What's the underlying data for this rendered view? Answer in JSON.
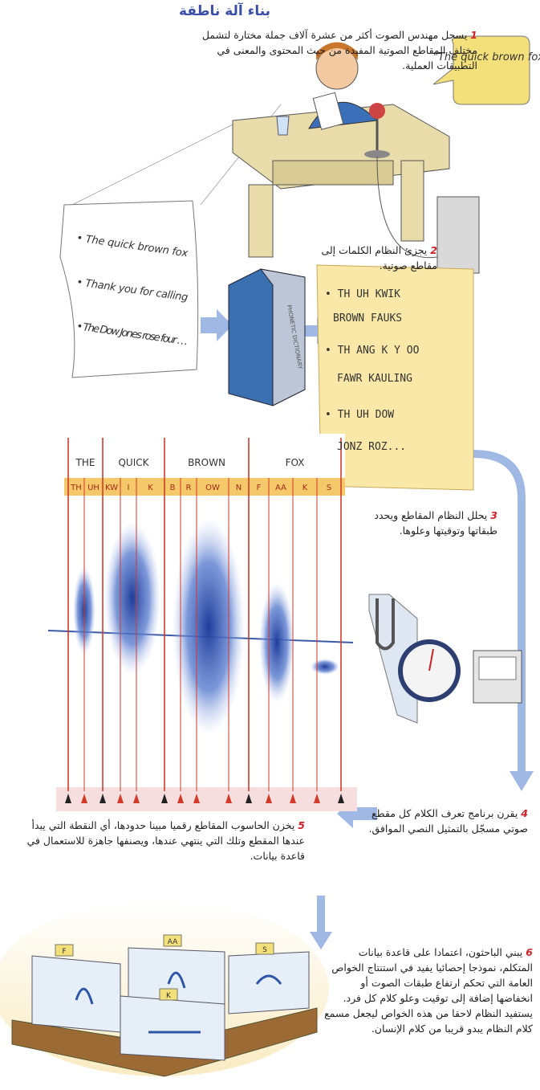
{
  "title": "بناء آلة ناطقة",
  "speech_bubble": "\"The quick brown fox\"",
  "script_lines": [
    "• The quick brown fox",
    "• Thank you for calling",
    "• The Dow Jones rose four . . ."
  ],
  "book_label": "PHONETIC DICTIONARY",
  "phonetic_lines": [
    "• TH UH KWIK",
    "BROWN FAUKS",
    "• TH ANG K Y OO",
    "FAWR KAULING",
    "• TH UH DOW",
    "JONZ ROZ..."
  ],
  "waveform": {
    "words": [
      "THE",
      "QUICK",
      "BROWN",
      "FOX"
    ],
    "phonemes": [
      "TH",
      "UH",
      "KW",
      "I",
      "K",
      "B",
      "R",
      "OW",
      "N",
      "F",
      "AA",
      "K",
      "S"
    ]
  },
  "steps": [
    {
      "number": "1",
      "text": "يسجل مهندس الصوت أكثر من عشرة آلاف جملة مختارة لتشمل مختلف المقاطع الصوتية المفيدة من حيث المحتوى والمعنى في التطبيقات العملية."
    },
    {
      "number": "2",
      "text": "يجزئ النظام الكلمات إلى مقاطع صوتية."
    },
    {
      "number": "3",
      "text": "يحلل النظام المقاطع ويحدد طبقاتها وتوقيتها وعلوها."
    },
    {
      "number": "4",
      "text": "يقرن برنامج تعرف الكلام كل مقطع صوتي مسجّل بالتمثيل النصي الموافق."
    },
    {
      "number": "5",
      "text": "يخزن الحاسوب المقاطع رقميا مبينا حدودها، أي النقطة التي يبدأ عندها المقطع وتلك التي ينتهي عندها، ويصنفها جاهزة للاستعمال في قاعدة بيانات."
    },
    {
      "number": "6",
      "text": "يبني الباحثون، اعتمادا على قاعدة بيانات المتكلم، نموذجا إحصائيا يفيد في استنتاج الخواص العامة التي تحكم ارتفاع طبقات الصوت أو انخفاضها إضافة إلى توقيت وعلو كلام كل فرد. يستفيد النظام لاحقا من هذه الخواص ليجعل مسمع كلام النظام يبدو قريبا من كلام الإنسان."
    }
  ],
  "file_tabs": [
    "F",
    "AA",
    "S",
    "K"
  ]
}
